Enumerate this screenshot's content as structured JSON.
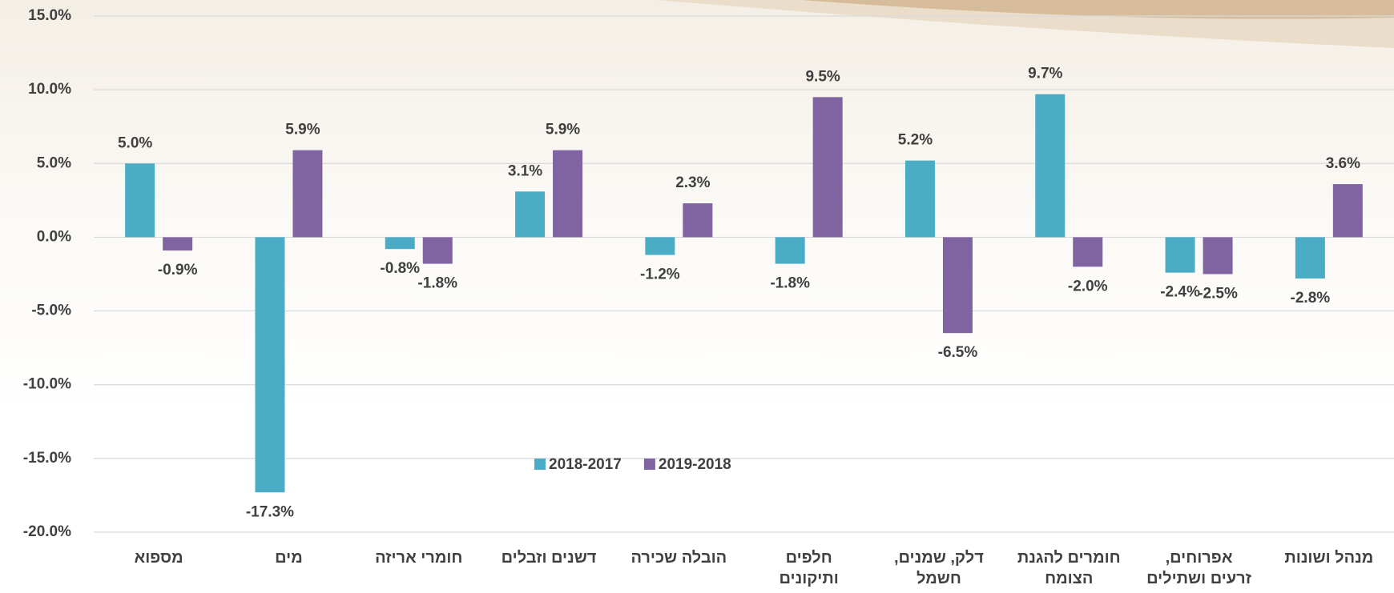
{
  "chart_data": {
    "type": "bar",
    "categories": [
      "מספוא",
      "מים",
      "חומרי אריזה",
      "דשנים וזבלים",
      "הובלה שכירה",
      "חלפים\nותיקונים",
      "דלק, שמנים,\nחשמל",
      "חומרים להגנת\nהצומח",
      "אפרוחים,\nזרעים ושתילים",
      "מנהל ושונות"
    ],
    "series": [
      {
        "name": "2018-2017",
        "color": "#4bacc6",
        "values": [
          5.0,
          -17.3,
          -0.8,
          3.1,
          -1.2,
          -1.8,
          5.2,
          9.7,
          -2.4,
          -2.8
        ],
        "value_labels": [
          "5.0%",
          "-17.3%",
          "-0.8%",
          "3.1%",
          "-1.2%",
          "-1.8%",
          "5.2%",
          "9.7%",
          "-2.4%",
          "-2.8%"
        ]
      },
      {
        "name": "2019-2018",
        "color": "#8064a2",
        "values": [
          -0.9,
          5.9,
          -1.8,
          5.9,
          2.3,
          9.5,
          -6.5,
          -2.0,
          -2.5,
          3.6
        ],
        "value_labels": [
          "-0.9%",
          "5.9%",
          "-1.8%",
          "5.9%",
          "2.3%",
          "9.5%",
          "-6.5%",
          "-2.0%",
          "-2.5%",
          "3.6%"
        ]
      }
    ],
    "ylim": [
      -20,
      15
    ],
    "yticks": [
      {
        "value": -20,
        "label": "-20.0%"
      },
      {
        "value": -15,
        "label": "-15.0%"
      },
      {
        "value": -10,
        "label": "-10.0%"
      },
      {
        "value": -5,
        "label": "-5.0%"
      },
      {
        "value": 0,
        "label": "0.0%"
      },
      {
        "value": 5,
        "label": "5.0%"
      },
      {
        "value": 10,
        "label": "10.0%"
      },
      {
        "value": 15,
        "label": "15.0%"
      }
    ],
    "grid": true
  }
}
